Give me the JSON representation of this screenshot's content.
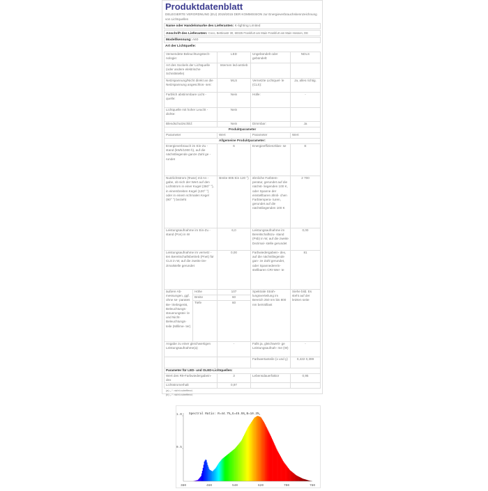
{
  "title": "Produktdatenblatt",
  "regulation": "DELEGIERTE VERORDNUNG (EU) 2019/2015 DER KOMMISSION zur Energieverbrauchskennzeichnung von Lichtquellen",
  "supplier_name": {
    "label": "Name oder Handelsmarke des Lieferanten:",
    "value": "K-lighting Limited"
  },
  "supplier_address": {
    "label": "Anschrift des Lieferanten:",
    "value": "Coco, Bettinastr 30, 60325 Frankfurt am Main Frankfurt am Main Hessen, DE"
  },
  "model": {
    "label": "Modellkennung:",
    "value": "A60"
  },
  "light_source_type": {
    "label": "Art der Lichtquelle:"
  },
  "type_rows": [
    {
      "p1": "Verwendete Beleuchtungstech- nologie:",
      "v1": "LED",
      "p2": "Ungebündelt oder gebündelt:",
      "v2": "NDLS"
    },
    {
      "p1": "Art des Sockels der Lichtquelle (oder andere elektrische Schnittstelle)",
      "v1": "Internen led-antrieb",
      "p2": "",
      "v2": ""
    },
    {
      "p1": "Netzspannung/Nicht direkt an die Netzspannung angeschlos- sen:",
      "v1": "MLS",
      "p2": "Vernetzte Lichtquel- le (CLS):",
      "v2": "Ja, alles richtig."
    },
    {
      "p1": "Farblich abstimmbare Licht - quelle:",
      "v1": "Nein",
      "p2": "Hülle:",
      "v2": "-"
    },
    {
      "p1": "Lichtquelle mit hoher Leucht - dichte:",
      "v1": "Nein",
      "p2": "",
      "v2": ""
    },
    {
      "p1": "Blendschutzschild:",
      "v1": "Nein",
      "p2": "Dimmbar:",
      "v2": "Ja"
    }
  ],
  "product_params_header": "Produktparameter",
  "col_headers": [
    "Parameter",
    "Wert",
    "Parameter",
    "Wert"
  ],
  "general_header": "Allgemeine Produktparameter:",
  "general_rows": [
    {
      "p1": "Energieverbrauch im Ein-Zu - stand (kWh/1000 h), auf die nächstliegende ganze Zahl ge - rundet",
      "v1": "6",
      "p2": "Energieeffizienzklas- se",
      "v2": "E"
    },
    {
      "p1": "Nutzlichtstrom (Φuse) mit An - gabe, ob sich der Wert auf den Lichtstrom in einer Kugel (360° °), in einembreiten Kegel (120° °) oder in einem schmalen Kegel (90° °) bezieht",
      "v1": "Breite 805 Ein 120 °)",
      "p2": "ähnliche Farbtem- peratur, gerundet auf die nächst- liegenden 100 K, oder Spanne der einstellbaren ähnli- chen Farbtempera- turen, gerundet auf die nächstliegenden 100 K",
      "v2": "2 700"
    },
    {
      "p1": "Leistungsaufnahme im Ein-Zu - stand (Pon) in W",
      "v1": "6,0",
      "p2": "Leistungsaufnahme im Bereitschaftszu- stand (Psb) in W, auf die zweite Dezimal- stelle gerundet",
      "v2": "0,00"
    },
    {
      "p1": "Leistungsaufnahme im vernetz - ten Bereitschaftsbetrieb (Pnet) für CLS in W, auf die zweite De- zimalstelle gerundet",
      "v1": "0,00",
      "p2": "Farbwiedergabein- dex, auf die nächstliegende gan- ze Zahl gerundet, oder Spannedereín- stellbaren CRI-Wer- te",
      "v2": "81"
    }
  ],
  "dimensions": {
    "label": "äußere Ab- messungen, ggf. ohne se- parates Be- triebsgerät, Beleuchtungs- steuerungstei- le und Nicht- Beleuchtungs- teile (Millime- ter)",
    "items": [
      {
        "name": "Höhe",
        "value": "107"
      },
      {
        "name": "Breite",
        "value": "60"
      },
      {
        "name": "Tiefe",
        "value": "60"
      }
    ],
    "p2": "Spektrale Strah- lungsverteilung im Bereich 250 nm bis 800 nm beiVolllast",
    "v2": "Siehe bild. Es steht auf der letzten seite"
  },
  "equiv_row": {
    "p1": "Angabe zu einer gleichwertigen Leistungsaufnahme(a)",
    "v1": "-",
    "p2": "Falls ja, gleichwerti- ge Leistungsaufnah- me (W)",
    "v2": "-"
  },
  "chroma_row": {
    "p2": "Farbwertanteile (x und y)",
    "v2": "0,422 0,399"
  },
  "led_header": "Parameter für LED- und OLED-Lichtquellen:",
  "led_rows": [
    {
      "p1": "Wert des R9-Farbwiedergabein- dex",
      "v1": "3",
      "p2": "Lebensdauerfaktor",
      "v2": "0,95"
    },
    {
      "p1": "Lichtstromerhalt",
      "v1": "0,97",
      "p2": "",
      "v2": ""
    }
  ],
  "footnotes": [
    "(a) „-“: nicht zutreffend;",
    "(b) „-“: nicht zutreffend;"
  ],
  "chart_data": {
    "type": "area",
    "title": "Spectral Ratio:  R=44.7%,G=45.5%,B=10.3%,",
    "xlabel": "",
    "ylabel": "",
    "xlim": [
      380,
      780
    ],
    "ylim": [
      0,
      1.0
    ],
    "xticks": [
      "380",
      "460",
      "540",
      "620",
      "700",
      "780"
    ],
    "yticks": [
      "0.5",
      "1.0"
    ],
    "x": [
      380,
      410,
      425,
      435,
      440,
      445,
      450,
      455,
      460,
      470,
      480,
      490,
      500,
      520,
      540,
      560,
      580,
      600,
      610,
      620,
      630,
      650,
      670,
      690,
      710,
      730,
      750,
      770,
      780
    ],
    "values": [
      0,
      0,
      0.02,
      0.08,
      0.18,
      0.3,
      0.34,
      0.25,
      0.18,
      0.15,
      0.2,
      0.28,
      0.34,
      0.42,
      0.5,
      0.62,
      0.82,
      0.97,
      1.0,
      0.98,
      0.9,
      0.7,
      0.48,
      0.3,
      0.17,
      0.09,
      0.04,
      0.01,
      0
    ]
  }
}
